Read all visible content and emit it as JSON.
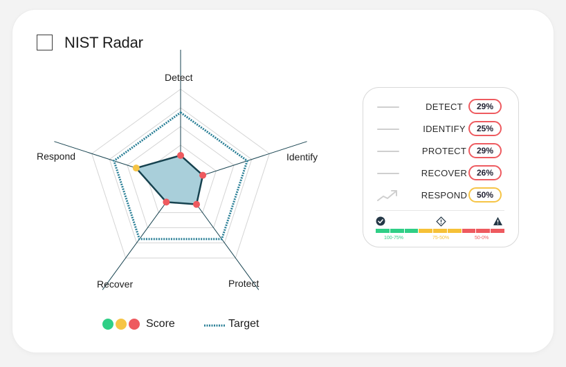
{
  "widget": {
    "title": "NIST Radar"
  },
  "chart_data": {
    "type": "radar",
    "axes": [
      "Detect",
      "Identify",
      "Protect",
      "Recover",
      "Respond"
    ],
    "rings": 5,
    "rmax": 100,
    "series": [
      {
        "name": "Score",
        "values": [
          29,
          25,
          29,
          26,
          50
        ],
        "fill": "#a9cfda",
        "stroke": "#16424f"
      },
      {
        "name": "Target",
        "values": [
          75,
          75,
          75,
          75,
          75
        ],
        "stroke": "#2a7f96",
        "style": "dotted"
      }
    ],
    "point_colors": [
      "#ee5a5f",
      "#ee5a5f",
      "#ee5a5f",
      "#ee5a5f",
      "#f6c445"
    ],
    "grid_color": "#d4d4d4",
    "axis_color": "#16424f"
  },
  "legend": {
    "rows": [
      {
        "name": "DETECT",
        "value": "29%",
        "status": "red",
        "icon": "line"
      },
      {
        "name": "IDENTIFY",
        "value": "25%",
        "status": "red",
        "icon": "line"
      },
      {
        "name": "PROTECT",
        "value": "29%",
        "status": "red",
        "icon": "line"
      },
      {
        "name": "RECOVER",
        "value": "26%",
        "status": "red",
        "icon": "line"
      },
      {
        "name": "RESPOND",
        "value": "50%",
        "status": "yellow",
        "icon": "trend-up-icon"
      }
    ],
    "scale": {
      "labels": [
        "100-75%",
        "75-50%",
        "50-0%"
      ],
      "colors": [
        "#2fcf86",
        "#f6c137",
        "#ee5a5f"
      ],
      "icons": [
        "check-circle-icon",
        "warning-diamond-icon",
        "alert-triangle-icon"
      ]
    }
  },
  "bottom_legend": {
    "score_label": "Score",
    "target_label": "Target",
    "score_colors": [
      "#2fcf86",
      "#f6c445",
      "#ee5a5f"
    ]
  }
}
